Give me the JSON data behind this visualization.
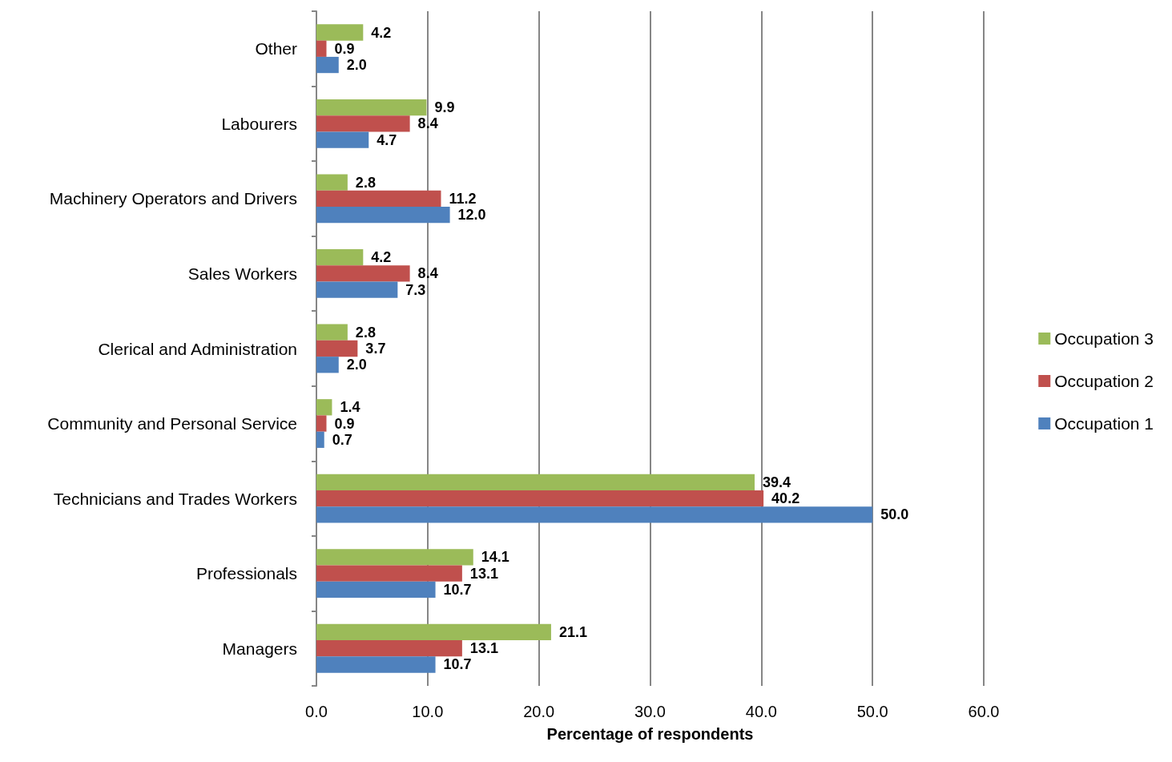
{
  "chart_data": {
    "type": "bar",
    "orientation": "horizontal",
    "xlabel": "Percentage of respondents",
    "categories": [
      "Other",
      "Labourers",
      "Machinery Operators and Drivers",
      "Sales Workers",
      "Clerical and Administration",
      "Community and Personal Service",
      "Technicians and Trades Workers",
      "Professionals",
      "Managers"
    ],
    "series": [
      {
        "name": "Occupation 3",
        "color": "#9bbb59",
        "values": [
          4.2,
          9.9,
          2.8,
          4.2,
          2.8,
          1.4,
          39.4,
          14.1,
          21.1
        ],
        "value_labels": [
          "4.2",
          "9.9",
          "2.8",
          "4.2",
          "2.8",
          "1.4",
          "39.4",
          "14.1",
          "21.1"
        ]
      },
      {
        "name": "Occupation 2",
        "color": "#c0504d",
        "values": [
          0.9,
          8.4,
          11.2,
          8.4,
          3.7,
          0.9,
          40.2,
          13.1,
          13.1
        ],
        "value_labels": [
          "0.9",
          "8.4",
          "11.2",
          "8.4",
          "3.7",
          "0.9",
          "40.2",
          "13.1",
          "13.1"
        ]
      },
      {
        "name": "Occupation 1",
        "color": "#4f81bd",
        "values": [
          2.0,
          4.7,
          12.0,
          7.3,
          2.0,
          0.7,
          50.0,
          10.7,
          10.7
        ],
        "value_labels": [
          "2.0",
          "4.7",
          "12.0",
          "7.3",
          "2.0",
          "0.7",
          "50.0",
          "10.7",
          "10.7"
        ]
      }
    ],
    "xlim": [
      0,
      60
    ],
    "xticks": [
      {
        "value": 0,
        "label": "0.0"
      },
      {
        "value": 10,
        "label": "10.0"
      },
      {
        "value": 20,
        "label": "20.0"
      },
      {
        "value": 30,
        "label": "30.0"
      },
      {
        "value": 40,
        "label": "40.0"
      },
      {
        "value": 50,
        "label": "50.0"
      },
      {
        "value": 60,
        "label": "60.0"
      }
    ],
    "grid": "x",
    "legend": "right"
  }
}
